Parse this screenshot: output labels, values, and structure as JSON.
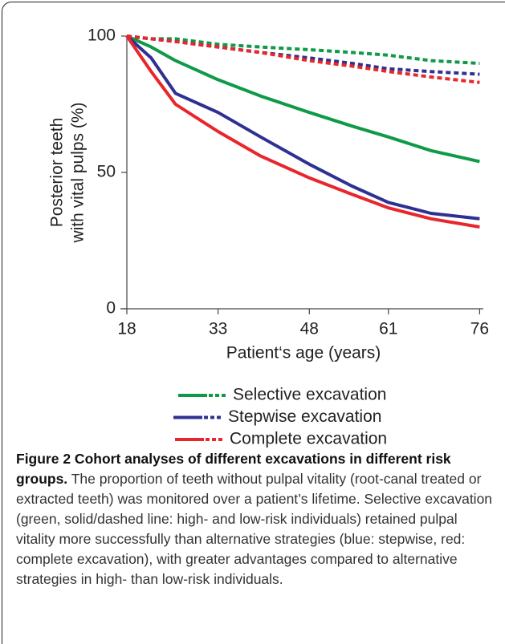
{
  "chart_data": {
    "type": "line",
    "ylabel": [
      "Posterior teeth",
      "with vital pulps (%)"
    ],
    "xlabel": "Patient‘s age (years)",
    "x": [
      18,
      22,
      26,
      33,
      40,
      48,
      55,
      61,
      68,
      76
    ],
    "xlim": [
      18,
      77
    ],
    "xticks": [
      18,
      33,
      48,
      61,
      76
    ],
    "ylim": [
      0,
      100
    ],
    "yticks": [
      0,
      50,
      100
    ],
    "series": [
      {
        "name": "Selective excavation",
        "color": "#0f9a48",
        "values": [
          100,
          96,
          91,
          84,
          78,
          72,
          67,
          63,
          58,
          54
        ],
        "low_risk_values": [
          100,
          99,
          99,
          97,
          96,
          95,
          94,
          93,
          91,
          90
        ]
      },
      {
        "name": "Stepwise excavation",
        "color": "#2e3192",
        "values": [
          100,
          92,
          79,
          72,
          63,
          53,
          45,
          39,
          35,
          33
        ],
        "low_risk_values": [
          100,
          99,
          98,
          96,
          94,
          92,
          90,
          88,
          87,
          86
        ]
      },
      {
        "name": "Complete excavation",
        "color": "#e8262b",
        "values": [
          100,
          87,
          75,
          65,
          56,
          48,
          42,
          37,
          33,
          30
        ],
        "low_risk_values": [
          100,
          99,
          98,
          96,
          94,
          91,
          89,
          87,
          85,
          83
        ]
      }
    ]
  },
  "figure_caption": {
    "title": "Figure 2 Cohort analyses of different excavations in different risk groups.",
    "text": "The proportion of teeth without pulpal vitality (root-canal treated or extracted teeth) was monitored over a patient’s lifetime. Selective excavation (green, solid/dashed line: high- and low-risk individuals) retained pulpal vitality more successfully than alternative strategies (blue: stepwise, red: complete excavation), with greater advantages compared to alternative strategies in high- than low-risk individuals."
  }
}
